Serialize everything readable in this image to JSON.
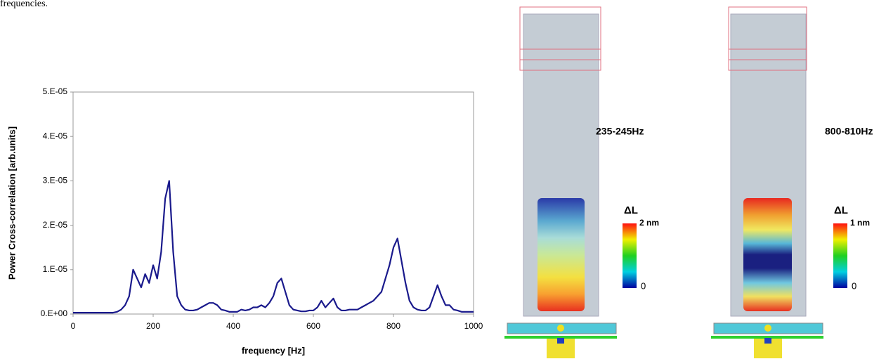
{
  "caption_fragment": "frequencies.",
  "chart_data": {
    "type": "line",
    "xlabel": "frequency [Hz]",
    "ylabel": "Power Cross-correlation [arb.units]",
    "x": [
      0,
      10,
      20,
      30,
      40,
      50,
      60,
      70,
      80,
      90,
      100,
      110,
      120,
      130,
      140,
      150,
      160,
      170,
      180,
      190,
      200,
      210,
      220,
      230,
      240,
      250,
      260,
      270,
      280,
      290,
      300,
      310,
      320,
      330,
      340,
      350,
      360,
      370,
      380,
      390,
      400,
      410,
      420,
      430,
      440,
      450,
      460,
      470,
      480,
      490,
      500,
      510,
      520,
      530,
      540,
      550,
      560,
      570,
      580,
      590,
      600,
      610,
      620,
      630,
      640,
      650,
      660,
      670,
      680,
      690,
      700,
      710,
      720,
      730,
      740,
      750,
      760,
      770,
      780,
      790,
      800,
      810,
      820,
      830,
      840,
      850,
      860,
      870,
      880,
      890,
      900,
      910,
      920,
      930,
      940,
      950,
      960,
      970,
      980,
      990,
      1000
    ],
    "values": [
      3e-07,
      3e-07,
      3e-07,
      3e-07,
      3e-07,
      3e-07,
      3e-07,
      3e-07,
      3e-07,
      3e-07,
      3e-07,
      5e-07,
      1e-06,
      2e-06,
      4e-06,
      1e-05,
      8e-06,
      6e-06,
      9e-06,
      7e-06,
      1.1e-05,
      8e-06,
      1.4e-05,
      2.6e-05,
      3e-05,
      1.4e-05,
      4e-06,
      2e-06,
      1e-06,
      8e-07,
      8e-07,
      1e-06,
      1.5e-06,
      2e-06,
      2.5e-06,
      2.5e-06,
      2e-06,
      1e-06,
      8e-07,
      5e-07,
      5e-07,
      5e-07,
      1e-06,
      8e-07,
      1e-06,
      1.5e-06,
      1.5e-06,
      2e-06,
      1.5e-06,
      2.5e-06,
      4e-06,
      7e-06,
      8e-06,
      5e-06,
      2e-06,
      1e-06,
      8e-07,
      6e-07,
      6e-07,
      8e-07,
      8e-07,
      1.5e-06,
      3e-06,
      1.5e-06,
      2.5e-06,
      3.5e-06,
      1.5e-06,
      8e-07,
      8e-07,
      1e-06,
      1e-06,
      1e-06,
      1.5e-06,
      2e-06,
      2.5e-06,
      3e-06,
      4e-06,
      5e-06,
      8e-06,
      1.1e-05,
      1.5e-05,
      1.7e-05,
      1.2e-05,
      7e-06,
      3e-06,
      1.5e-06,
      1e-06,
      8e-07,
      8e-07,
      1.5e-06,
      4e-06,
      6.5e-06,
      4e-06,
      2e-06,
      2e-06,
      1e-06,
      8e-07,
      5e-07,
      5e-07,
      5e-07,
      5e-07
    ],
    "color": "#1a1a8c",
    "xlim": [
      0,
      1000
    ],
    "xticks": [
      0,
      200,
      400,
      600,
      800,
      1000
    ],
    "ylim": [
      0,
      5e-05
    ],
    "yticks": [
      {
        "value": 0,
        "label": "0.E+00"
      },
      {
        "value": 1e-05,
        "label": "1.E-05"
      },
      {
        "value": 2e-05,
        "label": "2.E-05"
      },
      {
        "value": 3e-05,
        "label": "3.E-05"
      },
      {
        "value": 4e-05,
        "label": "4.E-05"
      },
      {
        "value": 5e-05,
        "label": "5.E-05"
      }
    ],
    "grid": false
  },
  "panels": [
    {
      "band": "235-245Hz",
      "scale_title": "ΔL",
      "scale_max": "2 nm",
      "scale_min": "0"
    },
    {
      "band": "800-810Hz",
      "scale_title": "ΔL",
      "scale_max": "1 nm",
      "scale_min": "0"
    }
  ]
}
